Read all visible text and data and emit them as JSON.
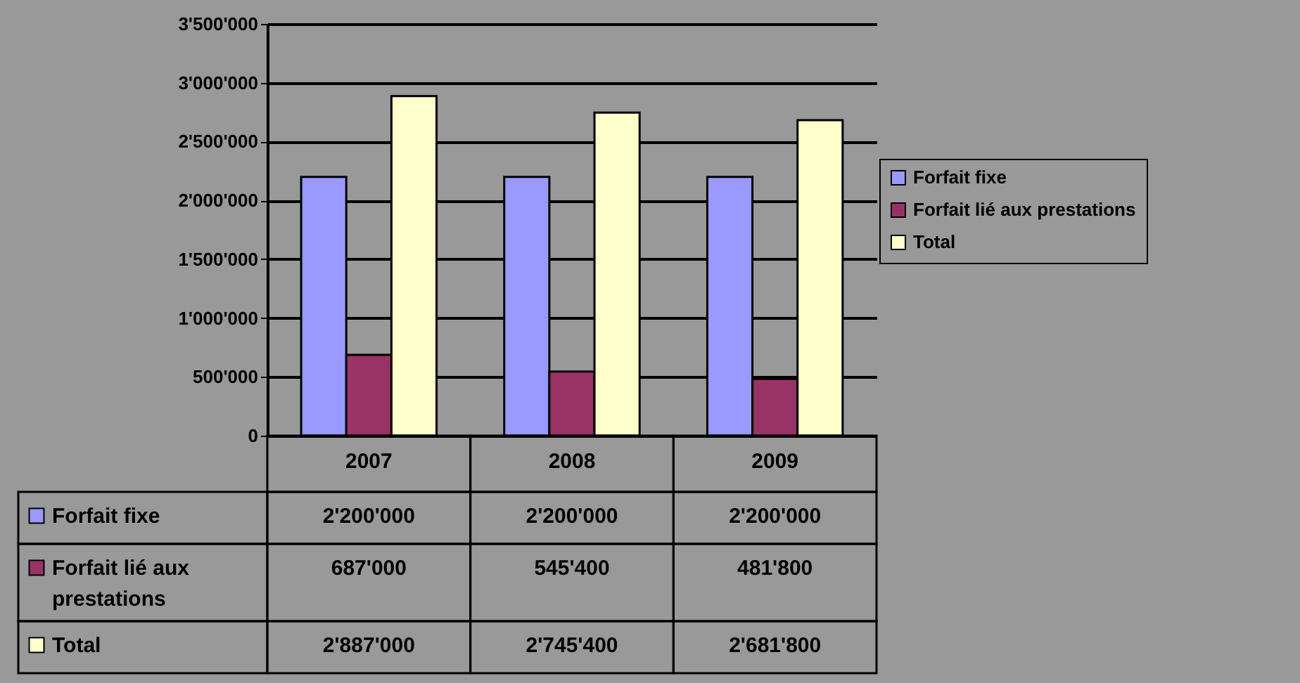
{
  "chart_data": {
    "type": "bar",
    "categories": [
      "2007",
      "2008",
      "2009"
    ],
    "series": [
      {
        "name": "Forfait fixe",
        "color": "#9999ff",
        "values": [
          2200000,
          2200000,
          2200000
        ],
        "value_labels": [
          "2'200'000",
          "2'200'000",
          "2'200'000"
        ]
      },
      {
        "name": "Forfait lié aux prestations",
        "color": "#993366",
        "values": [
          687000,
          545400,
          481800
        ],
        "value_labels": [
          "687'000",
          "545'400",
          "481'800"
        ]
      },
      {
        "name": "Total",
        "color": "#ffffcc",
        "values": [
          2887000,
          2745400,
          2681800
        ],
        "value_labels": [
          "2'887'000",
          "2'745'400",
          "2'681'800"
        ]
      }
    ],
    "ylim": [
      0,
      3500000
    ],
    "yticks": [
      0,
      {
        "value": 500000,
        "label": "500'000"
      },
      {
        "value": 1000000,
        "label": "1'000'000"
      },
      {
        "value": 1500000,
        "label": "1'500'000"
      },
      {
        "value": 2000000,
        "label": "2'000'000"
      },
      {
        "value": 2500000,
        "label": "2'500'000"
      },
      {
        "value": 3000000,
        "label": "3'000'000"
      },
      {
        "value": 3500000,
        "label": "3'500'000"
      }
    ],
    "grid": "y",
    "legend": "right"
  }
}
